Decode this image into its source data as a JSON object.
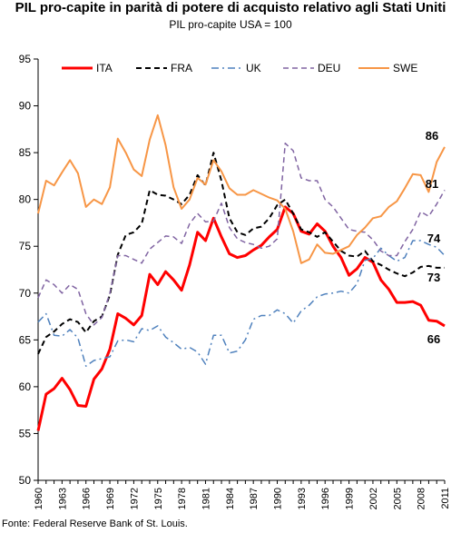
{
  "title": "PIL pro-capite in parità di potere di acquisto relativo agli Stati Uniti",
  "subtitle": "PIL pro-capite USA = 100",
  "source": "Fonte: Federal Reserve Bank of St. Louis.",
  "chart_data": {
    "type": "line",
    "ylim": [
      50,
      95
    ],
    "yticks": [
      50,
      55,
      60,
      65,
      70,
      75,
      80,
      85,
      90,
      95
    ],
    "xlim": [
      1960,
      2011
    ],
    "xticks": [
      "1960",
      "1963",
      "1966",
      "1969",
      "1972",
      "1975",
      "1978",
      "1981",
      "1984",
      "1987",
      "1990",
      "1993",
      "1996",
      "1999",
      "2002",
      "2005",
      "2008",
      "2011"
    ],
    "grid": false,
    "legend_position": "top",
    "x": [
      1960,
      1961,
      1962,
      1963,
      1964,
      1965,
      1966,
      1967,
      1968,
      1969,
      1970,
      1971,
      1972,
      1973,
      1974,
      1975,
      1976,
      1977,
      1978,
      1979,
      1980,
      1981,
      1982,
      1983,
      1984,
      1985,
      1986,
      1987,
      1988,
      1989,
      1990,
      1991,
      1992,
      1993,
      1994,
      1995,
      1996,
      1997,
      1998,
      1999,
      2000,
      2001,
      2002,
      2003,
      2004,
      2005,
      2006,
      2007,
      2008,
      2009,
      2010,
      2011
    ],
    "series": [
      {
        "name": "ITA",
        "color": "#ff0000",
        "dash": "solid",
        "width": 3,
        "values": [
          55.3,
          59.2,
          59.8,
          60.9,
          59.7,
          58.0,
          57.9,
          60.8,
          61.9,
          64.0,
          67.8,
          67.3,
          66.6,
          67.6,
          72.0,
          70.9,
          72.3,
          71.4,
          70.3,
          73.0,
          76.5,
          75.6,
          78.0,
          76.0,
          74.2,
          73.8,
          74.0,
          74.6,
          75.1,
          76.0,
          76.8,
          79.2,
          78.5,
          76.6,
          76.3,
          77.4,
          76.6,
          75.0,
          73.8,
          71.9,
          72.6,
          73.8,
          73.3,
          71.4,
          70.4,
          69.0,
          69.0,
          69.1,
          68.7,
          67.1,
          67.0,
          66.5
        ],
        "end_label": "66"
      },
      {
        "name": "FRA",
        "color": "#000000",
        "dash": "dashed",
        "width": 2,
        "values": [
          63.5,
          65.3,
          65.9,
          66.7,
          67.2,
          66.9,
          65.8,
          67.0,
          67.5,
          69.8,
          74.1,
          76.2,
          76.5,
          77.4,
          81.0,
          80.5,
          80.4,
          80.0,
          79.5,
          80.5,
          82.6,
          81.5,
          85.0,
          82.0,
          78.0,
          76.5,
          76.2,
          76.9,
          77.1,
          78.0,
          79.4,
          80.0,
          78.5,
          76.8,
          76.5,
          76.0,
          76.5,
          75.5,
          74.5,
          74.0,
          73.9,
          74.5,
          73.4,
          73.0,
          72.5,
          72.1,
          71.8,
          72.2,
          72.8,
          72.9,
          72.7,
          72.7
        ],
        "end_label": "73"
      },
      {
        "name": "UK",
        "color": "#4f81bd",
        "dash": "dashdot",
        "width": 1.5,
        "values": [
          66.9,
          67.8,
          65.5,
          65.4,
          66.1,
          65.2,
          62.2,
          62.8,
          63.0,
          63.2,
          64.9,
          65.0,
          64.8,
          66.2,
          66.0,
          66.5,
          65.3,
          64.7,
          64.0,
          64.2,
          63.7,
          62.4,
          65.5,
          65.5,
          63.6,
          63.8,
          65.0,
          67.2,
          67.6,
          67.6,
          68.2,
          67.8,
          66.8,
          68.1,
          68.7,
          69.6,
          69.9,
          70.0,
          70.2,
          70.0,
          71.0,
          73.5,
          73.7,
          74.8,
          74.0,
          73.4,
          73.8,
          75.6,
          75.6,
          75.2,
          74.9,
          74.0
        ],
        "end_label": "74"
      },
      {
        "name": "DEU",
        "color": "#8064a2",
        "dash": "dashed",
        "width": 1.5,
        "values": [
          69.5,
          71.4,
          70.9,
          70.0,
          70.9,
          70.4,
          67.8,
          66.6,
          67.4,
          70.0,
          74.0,
          74.0,
          73.6,
          73.2,
          74.7,
          75.4,
          76.1,
          76.0,
          75.3,
          77.4,
          78.5,
          77.6,
          77.7,
          79.6,
          77.0,
          75.8,
          75.4,
          75.2,
          74.8,
          75.0,
          75.8,
          86.0,
          85.2,
          82.3,
          82.0,
          82.0,
          80.0,
          79.2,
          78.0,
          76.8,
          76.6,
          76.5,
          75.7,
          74.5,
          74.0,
          74.0,
          75.5,
          76.8,
          78.7,
          78.2,
          79.5,
          81.0
        ],
        "end_label": "81"
      },
      {
        "name": "SWE",
        "color": "#f79646",
        "dash": "solid",
        "width": 2,
        "values": [
          78.5,
          82.0,
          81.5,
          82.9,
          84.2,
          82.8,
          79.2,
          80.0,
          79.5,
          81.3,
          86.5,
          85.0,
          83.2,
          82.5,
          86.4,
          89.0,
          85.8,
          81.3,
          79.0,
          80.0,
          82.3,
          81.6,
          84.2,
          83.0,
          81.2,
          80.5,
          80.5,
          81.0,
          80.6,
          80.2,
          79.9,
          79.0,
          76.6,
          73.2,
          73.6,
          75.2,
          74.3,
          74.2,
          74.6,
          75.0,
          76.2,
          77.0,
          78.0,
          78.2,
          79.2,
          79.8,
          81.2,
          82.7,
          82.6,
          80.8,
          84.0,
          85.6
        ],
        "end_label": "86"
      }
    ]
  }
}
